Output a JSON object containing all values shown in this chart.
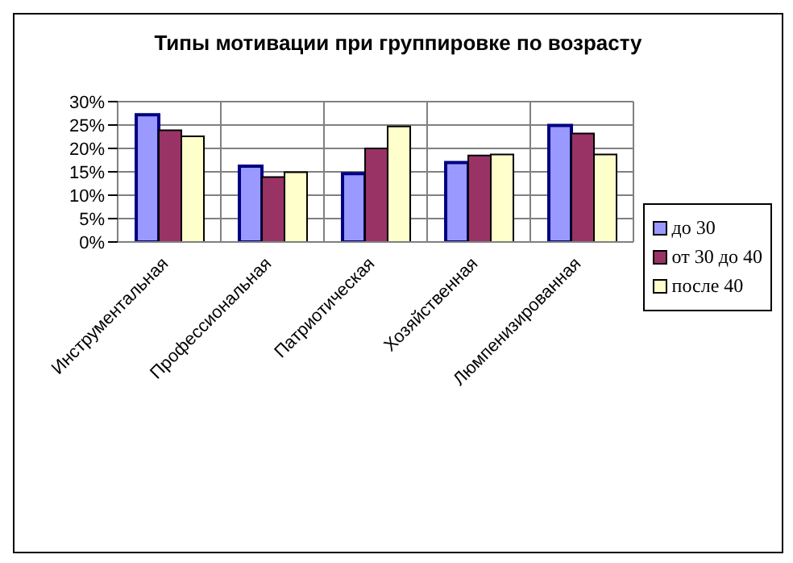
{
  "chart_data": {
    "type": "bar",
    "title": "Типы мотивации при группировке по возрасту",
    "categories": [
      "Инструментальная",
      "Профессиональная",
      "Патриотическая",
      "Хозяйственная",
      "Люмпенизированная"
    ],
    "series": [
      {
        "name": "до 30",
        "color": "#9999ff",
        "values": [
          27.2,
          16.2,
          14.6,
          17.0,
          24.9
        ]
      },
      {
        "name": "от 30 до 40",
        "color": "#993366",
        "values": [
          23.9,
          13.9,
          20.0,
          18.5,
          23.2
        ]
      },
      {
        "name": "после 40",
        "color": "#ffffcc",
        "values": [
          22.6,
          14.9,
          24.7,
          18.7,
          18.7
        ]
      }
    ],
    "ylim": [
      0,
      30
    ],
    "yticks": [
      {
        "value": 0,
        "label": "0%"
      },
      {
        "value": 5,
        "label": "5%"
      },
      {
        "value": 10,
        "label": "10%"
      },
      {
        "value": 15,
        "label": "15%"
      },
      {
        "value": 20,
        "label": "20%"
      },
      {
        "value": 25,
        "label": "25%"
      },
      {
        "value": 30,
        "label": "30%"
      }
    ],
    "grid": true,
    "legend": "right"
  }
}
